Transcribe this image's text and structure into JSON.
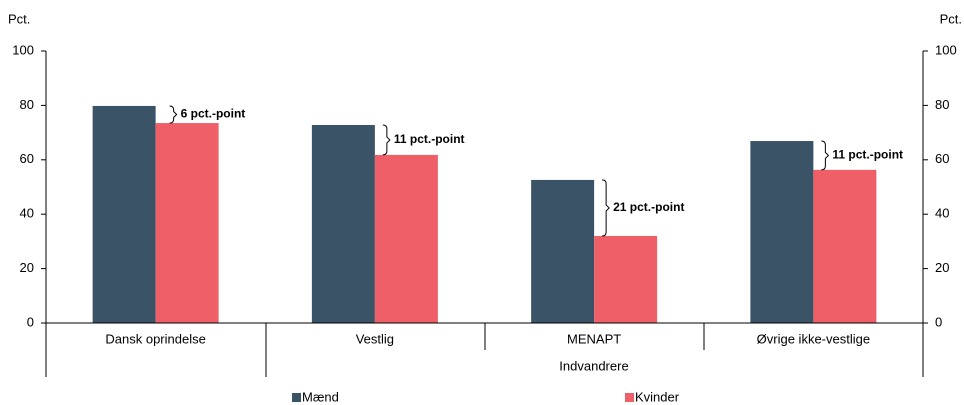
{
  "chart_data": {
    "type": "bar",
    "ylabel": "Pct.",
    "y2label": "Pct.",
    "categories": [
      "Dansk oprindelse",
      "Vestlig",
      "MENAPT",
      "Øvrige ikke-vestlige"
    ],
    "group_label": "Indvandrere",
    "series": [
      {
        "name": "Mænd",
        "color": "#3b5366",
        "values": [
          79.8,
          72.8,
          52.6,
          66.9
        ]
      },
      {
        "name": "Kvinder",
        "color": "#ee5f67",
        "values": [
          73.5,
          61.8,
          32.0,
          56.3
        ]
      }
    ],
    "annotations": [
      "6 pct.-point",
      "11 pct.-point",
      "21 pct.-point",
      "11 pct.-point"
    ],
    "ylim": [
      0,
      100
    ],
    "yticks": [
      0,
      20,
      40,
      60,
      80,
      100
    ],
    "y2lim": [
      0,
      100
    ],
    "y2ticks": [
      0,
      20,
      40,
      60,
      80,
      100
    ],
    "grid": false,
    "legend": "bottom"
  }
}
